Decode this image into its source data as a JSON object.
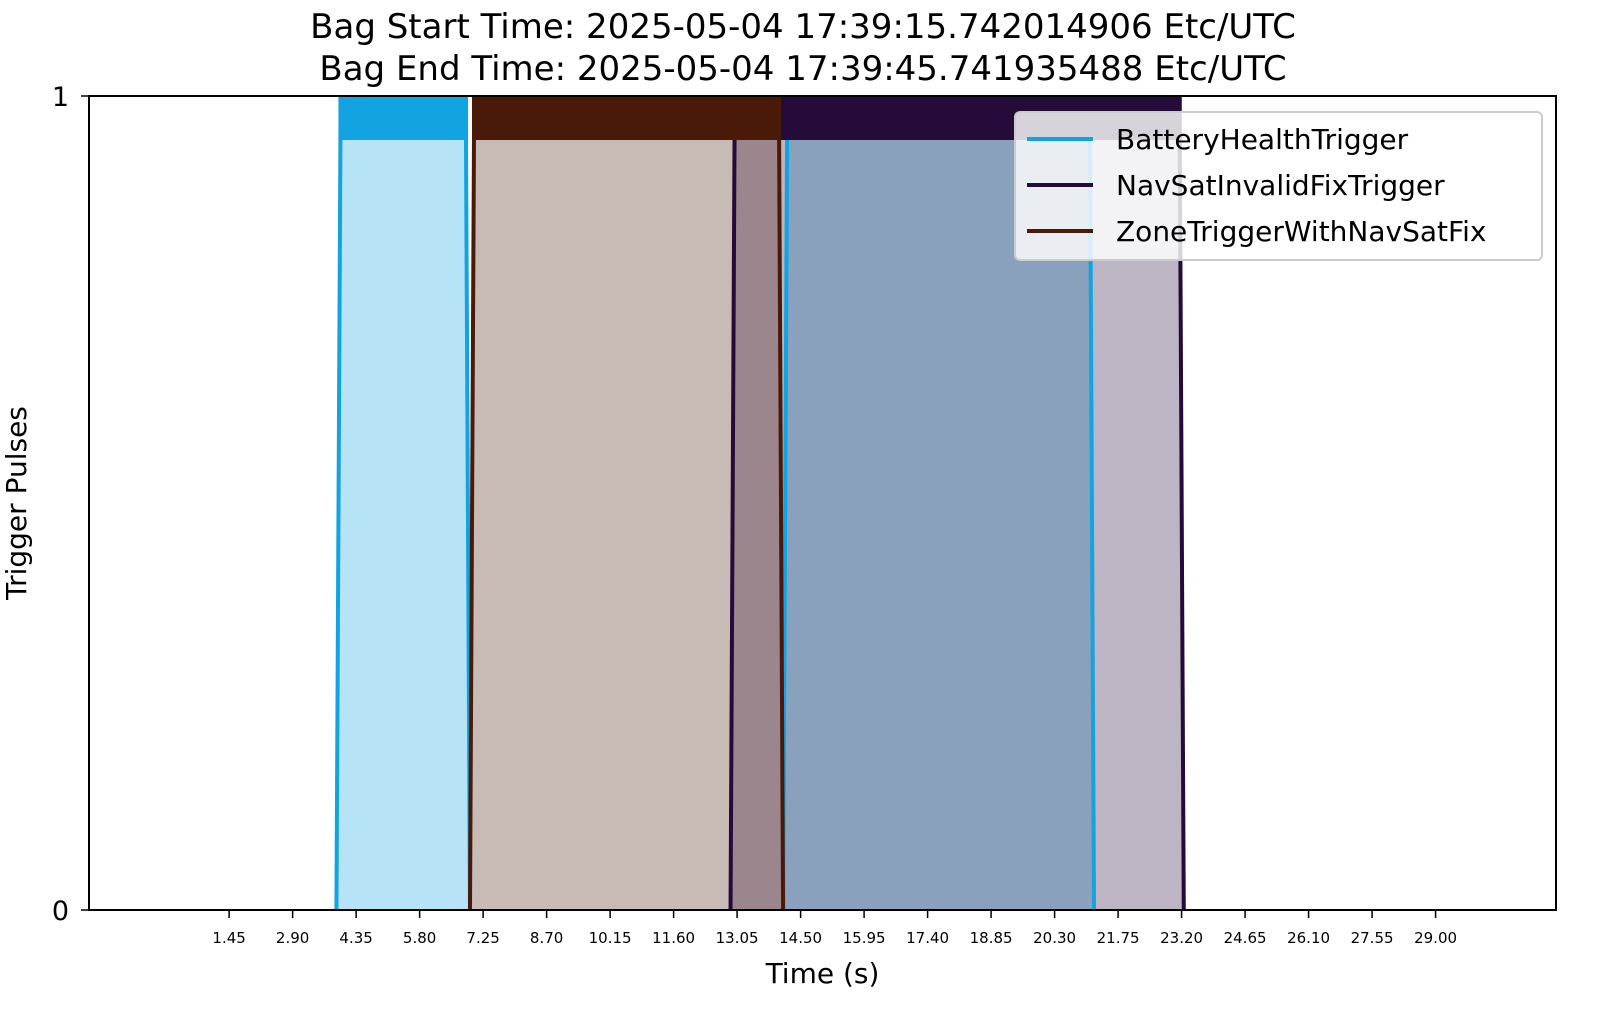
{
  "chart_data": {
    "type": "area",
    "title_lines": [
      "Bag Start Time: 2025-05-04 17:39:15.742014906 Etc/UTC",
      "Bag End Time: 2025-05-04 17:39:45.741935488 Etc/UTC"
    ],
    "xlabel": "Time (s)",
    "ylabel": "Trigger Pulses",
    "xlim": [
      -1.75,
      31.75
    ],
    "ylim": [
      0,
      1
    ],
    "xticks": [
      "1.45",
      "2.90",
      "4.35",
      "5.80",
      "7.25",
      "8.70",
      "10.15",
      "11.60",
      "13.05",
      "14.50",
      "15.95",
      "17.40",
      "18.85",
      "20.30",
      "21.75",
      "23.20",
      "24.65",
      "26.10",
      "27.55",
      "29.00"
    ],
    "yticks": [
      "0",
      "1"
    ],
    "grid": false,
    "legend_position": "upper-right",
    "series": [
      {
        "name": "BatteryHealthTrigger",
        "color": "#12a3e0",
        "fill_alpha": 0.3,
        "pulses": [
          [
            3.9,
            6.95
          ],
          [
            14.1,
            21.2
          ]
        ]
      },
      {
        "name": "NavSatInvalidFixTrigger",
        "color": "#240b3a",
        "fill_alpha": 0.3,
        "pulses": [
          [
            12.9,
            23.25
          ]
        ]
      },
      {
        "name": "ZoneTriggerWithNavSatFix",
        "color": "#4a1a09",
        "fill_alpha": 0.3,
        "pulses": [
          [
            6.95,
            14.1
          ]
        ]
      }
    ]
  }
}
